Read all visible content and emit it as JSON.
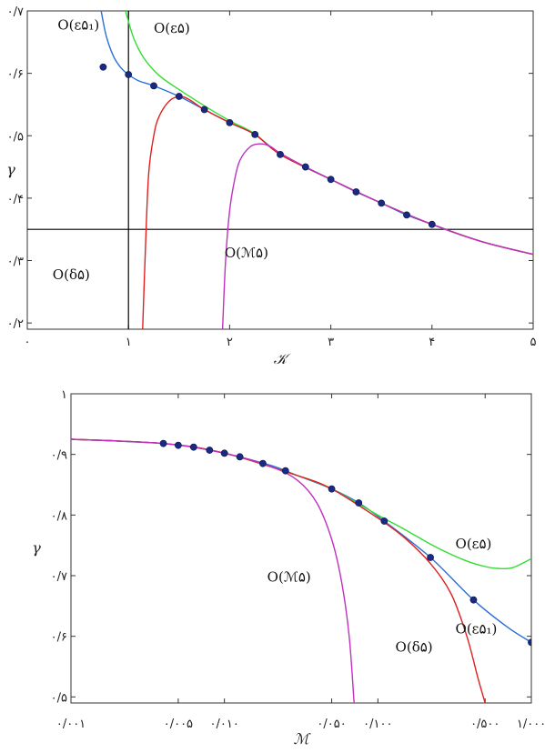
{
  "chart_data": [
    {
      "type": "line",
      "xlabel": "𝒦",
      "ylabel": "γ",
      "xlim": [
        0,
        5
      ],
      "ylim": [
        0.19,
        0.7
      ],
      "xticks": [
        {
          "v": 0,
          "label": "۰"
        },
        {
          "v": 1,
          "label": "۱"
        },
        {
          "v": 2,
          "label": "۲"
        },
        {
          "v": 3,
          "label": "۳"
        },
        {
          "v": 4,
          "label": "۴"
        },
        {
          "v": 5,
          "label": "۵"
        }
      ],
      "yticks": [
        {
          "v": 0.2,
          "label": "۰/۲"
        },
        {
          "v": 0.3,
          "label": "۰/۳"
        },
        {
          "v": 0.4,
          "label": "۰/۴"
        },
        {
          "v": 0.5,
          "label": "۰/۵"
        },
        {
          "v": 0.6,
          "label": "۰/۶"
        },
        {
          "v": 0.7,
          "label": "۰/۷"
        }
      ],
      "reference_lines": {
        "vertical_x": 1.0,
        "horizontal_y": 0.35
      },
      "points": {
        "x": [
          0.75,
          1.0,
          1.25,
          1.5,
          1.75,
          2.0,
          2.25,
          2.5,
          2.75,
          3.0,
          3.25,
          3.5,
          3.75,
          4.0
        ],
        "y": [
          0.61,
          0.598,
          0.58,
          0.563,
          0.542,
          0.521,
          0.502,
          0.47,
          0.45,
          0.43,
          0.41,
          0.392,
          0.373,
          0.358
        ]
      },
      "series": [
        {
          "color": "#2a6fd6",
          "x": [
            0.73,
            0.78,
            0.85,
            0.92,
            1.0,
            1.1,
            1.25,
            1.5,
            1.75,
            2.0,
            2.25,
            2.5,
            2.75,
            3.0,
            3.25,
            3.5,
            3.75,
            4.0,
            4.5,
            5.0
          ],
          "y": [
            0.7,
            0.66,
            0.628,
            0.61,
            0.598,
            0.588,
            0.58,
            0.563,
            0.542,
            0.521,
            0.502,
            0.47,
            0.45,
            0.43,
            0.41,
            0.392,
            0.373,
            0.358,
            0.33,
            0.31
          ]
        },
        {
          "color": "#33dd33",
          "x": [
            0.97,
            1.05,
            1.15,
            1.3,
            1.5,
            1.75,
            2.0,
            2.25,
            2.5,
            3.0,
            3.5,
            4.0,
            4.5,
            5.0
          ],
          "y": [
            0.7,
            0.657,
            0.625,
            0.597,
            0.574,
            0.548,
            0.524,
            0.503,
            0.47,
            0.43,
            0.392,
            0.358,
            0.33,
            0.31
          ]
        },
        {
          "color": "#e02020",
          "x": [
            1.14,
            1.17,
            1.2,
            1.25,
            1.3,
            1.4,
            1.5,
            1.6,
            1.75,
            2.0,
            2.25,
            2.5,
            3.0,
            3.5,
            4.0,
            4.5,
            5.0
          ],
          "y": [
            0.19,
            0.33,
            0.44,
            0.5,
            0.53,
            0.555,
            0.563,
            0.558,
            0.542,
            0.521,
            0.502,
            0.47,
            0.43,
            0.392,
            0.358,
            0.33,
            0.31
          ]
        },
        {
          "color": "#c030c0",
          "x": [
            1.93,
            1.96,
            2.0,
            2.05,
            2.1,
            2.2,
            2.3,
            2.4,
            2.5,
            2.75,
            3.0,
            3.5,
            4.0,
            4.5,
            5.0
          ],
          "y": [
            0.19,
            0.3,
            0.38,
            0.43,
            0.46,
            0.482,
            0.487,
            0.483,
            0.472,
            0.45,
            0.43,
            0.392,
            0.358,
            0.33,
            0.31
          ]
        }
      ],
      "annotations": [
        {
          "text": "O(ε۵₁)",
          "x": 0.3,
          "y": 0.67
        },
        {
          "text": "O(ε۵)",
          "x": 1.25,
          "y": 0.665
        },
        {
          "text": "O(δ۵)",
          "x": 0.25,
          "y": 0.27
        },
        {
          "text": "O(ℳ۵)",
          "x": 1.95,
          "y": 0.305
        }
      ]
    },
    {
      "type": "line",
      "xlabel": "ℳ",
      "ylabel": "γ",
      "xscale": "log",
      "xlim": [
        0.001,
        1.0
      ],
      "ylim": [
        0.49,
        1.0
      ],
      "xticks": [
        {
          "v": 0.001,
          "label": "۰/۰۰۱"
        },
        {
          "v": 0.005,
          "label": "۰/۰۰۵"
        },
        {
          "v": 0.01,
          "label": "۰/۰۱۰"
        },
        {
          "v": 0.05,
          "label": "۰/۰۵۰"
        },
        {
          "v": 0.1,
          "label": "۰/۱۰۰"
        },
        {
          "v": 0.5,
          "label": "۰/۵۰۰"
        },
        {
          "v": 1.0,
          "label": "۱/۰۰۰"
        }
      ],
      "yticks": [
        {
          "v": 0.5,
          "label": "۰/۵"
        },
        {
          "v": 0.6,
          "label": "۰/۶"
        },
        {
          "v": 0.7,
          "label": "۰/۷"
        },
        {
          "v": 0.8,
          "label": "۰/۸"
        },
        {
          "v": 0.9,
          "label": "۰/۹"
        },
        {
          "v": 1.0,
          "label": "۱"
        }
      ],
      "points": {
        "x": [
          0.004,
          0.005,
          0.0063,
          0.008,
          0.01,
          0.0126,
          0.0178,
          0.025,
          0.05,
          0.075,
          0.11,
          0.22,
          0.42,
          1.0
        ],
        "y": [
          0.918,
          0.915,
          0.912,
          0.907,
          0.902,
          0.896,
          0.885,
          0.873,
          0.843,
          0.82,
          0.79,
          0.73,
          0.66,
          0.59
        ]
      },
      "series": [
        {
          "color": "#2a6fd6",
          "x": [
            0.001,
            0.002,
            0.004,
            0.006,
            0.01,
            0.02,
            0.03,
            0.05,
            0.075,
            0.11,
            0.22,
            0.42,
            0.7,
            1.0
          ],
          "y": [
            0.925,
            0.922,
            0.918,
            0.913,
            0.902,
            0.882,
            0.865,
            0.843,
            0.82,
            0.79,
            0.73,
            0.66,
            0.615,
            0.59
          ]
        },
        {
          "color": "#33dd33",
          "x": [
            0.001,
            0.004,
            0.01,
            0.03,
            0.05,
            0.1,
            0.15,
            0.22,
            0.3,
            0.4,
            0.5,
            0.6,
            0.75,
            1.0
          ],
          "y": [
            0.925,
            0.918,
            0.902,
            0.865,
            0.843,
            0.8,
            0.776,
            0.752,
            0.735,
            0.722,
            0.715,
            0.712,
            0.713,
            0.728
          ]
        },
        {
          "color": "#e02020",
          "x": [
            0.001,
            0.004,
            0.01,
            0.03,
            0.05,
            0.1,
            0.15,
            0.22,
            0.3,
            0.38,
            0.45,
            0.5
          ],
          "y": [
            0.925,
            0.918,
            0.902,
            0.865,
            0.843,
            0.795,
            0.762,
            0.72,
            0.67,
            0.6,
            0.53,
            0.49
          ]
        },
        {
          "color": "#c030c0",
          "x": [
            0.001,
            0.004,
            0.01,
            0.02,
            0.03,
            0.04,
            0.05,
            0.058,
            0.065,
            0.07
          ],
          "y": [
            0.925,
            0.918,
            0.902,
            0.88,
            0.857,
            0.82,
            0.76,
            0.69,
            0.6,
            0.49
          ]
        }
      ],
      "annotations": [
        {
          "text": "O(ε۵)",
          "x": 0.32,
          "y": 0.745
        },
        {
          "text": "O(ℳ۵)",
          "x": 0.019,
          "y": 0.69
        },
        {
          "text": "O(ε۵₁)",
          "x": 0.32,
          "y": 0.605
        },
        {
          "text": "O(δ۵)",
          "x": 0.13,
          "y": 0.575
        }
      ]
    }
  ]
}
